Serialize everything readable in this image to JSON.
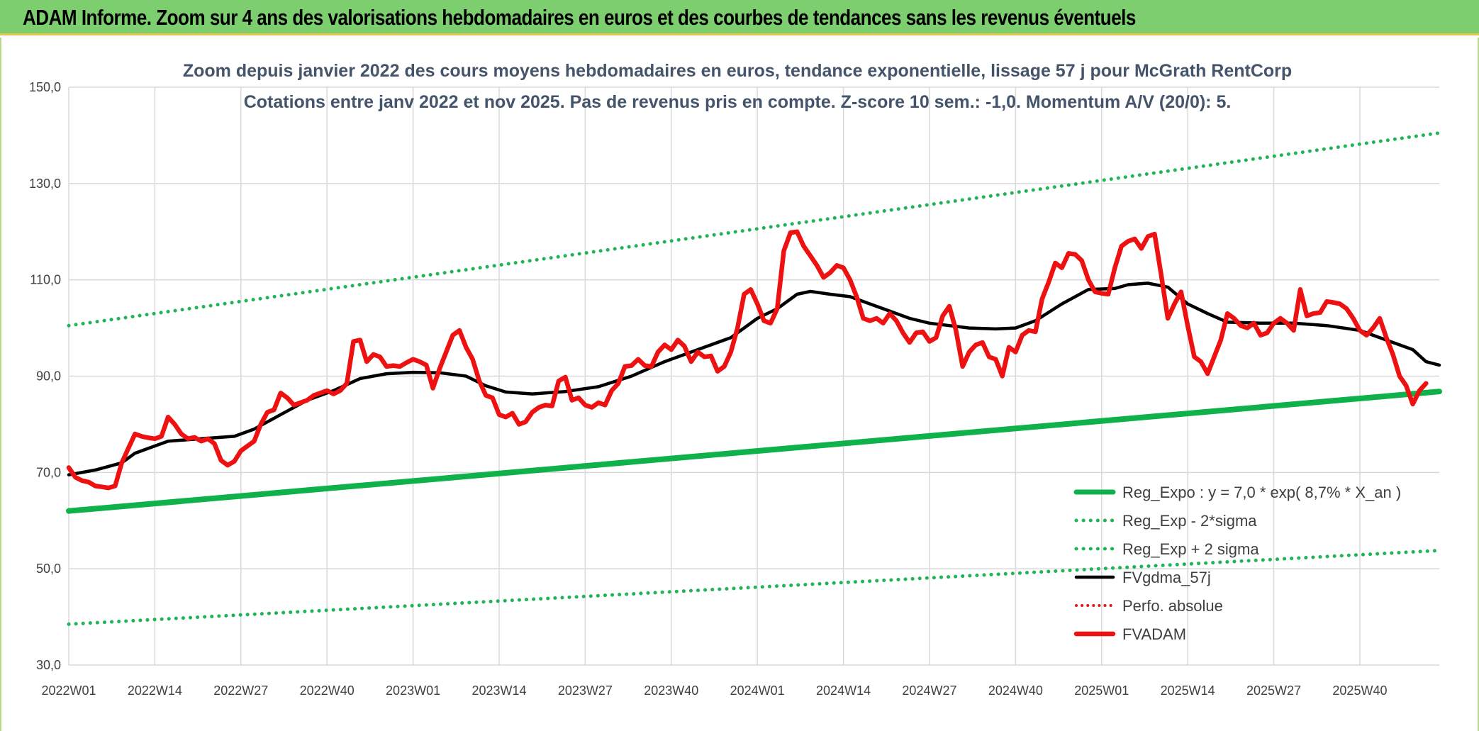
{
  "header": {
    "title": "ADAM Informe. Zoom sur 4 ans des valorisations hebdomadaires en euros et des courbes de tendances sans les revenus éventuels"
  },
  "colors": {
    "regression": "#0fb24a",
    "sigma": "#1fb455",
    "fvgdma": "#000000",
    "perfo": "#e31a1a",
    "fvadam": "#ee1111",
    "grid": "#d9d9d9",
    "title": "#44546a"
  },
  "chart_data": {
    "type": "line",
    "title": "Zoom depuis janvier 2022 des cours moyens hebdomadaires en euros, tendance exponentielle, lissage 57 j pour McGrath RentCorp",
    "subtitle": "Cotations entre janv 2022 et nov 2025. Pas de revenus pris en compte. Z-score 10 sem.: -1,0. Momentum A/V (20/0): 5.",
    "xlabel": "",
    "ylabel": "",
    "ylim": [
      30,
      150
    ],
    "yticks": [
      "30,0",
      "50,0",
      "70,0",
      "90,0",
      "110,0",
      "130,0",
      "150,0"
    ],
    "categories": [
      "2022W01",
      "2022W14",
      "2022W27",
      "2022W40",
      "2023W01",
      "2023W14",
      "2023W27",
      "2023W40",
      "2024W01",
      "2024W14",
      "2024W27",
      "2024W40",
      "2025W01",
      "2025W14",
      "2025W27",
      "2025W40"
    ],
    "x_week_index_of_categories": [
      0,
      13,
      26,
      39,
      52,
      65,
      78,
      91,
      104,
      117,
      130,
      143,
      156,
      169,
      182,
      195
    ],
    "grid": true,
    "legend_position": "bottom-right",
    "series": [
      {
        "name": "Reg_Expo : y = 7,0 * exp( 8,7% *  X_an )",
        "style": "solid-thick",
        "points": [
          [
            0,
            62.0
          ],
          [
            207,
            86.8
          ]
        ]
      },
      {
        "name": "Reg_Exp - 2*sigma",
        "style": "dotted",
        "points": [
          [
            0,
            38.5
          ],
          [
            207,
            53.8
          ]
        ]
      },
      {
        "name": "Reg_Exp + 2 sigma",
        "style": "dotted",
        "points": [
          [
            0,
            100.5
          ],
          [
            207,
            140.5
          ]
        ]
      },
      {
        "name": "FVgdma_57j",
        "style": "solid",
        "points": [
          [
            0,
            69.5
          ],
          [
            4,
            70.5
          ],
          [
            8,
            72
          ],
          [
            10,
            74
          ],
          [
            13,
            75.5
          ],
          [
            15,
            76.5
          ],
          [
            20,
            77
          ],
          [
            25,
            77.5
          ],
          [
            28,
            79
          ],
          [
            32,
            82
          ],
          [
            36,
            85
          ],
          [
            40,
            87
          ],
          [
            44,
            89.5
          ],
          [
            48,
            90.5
          ],
          [
            52,
            90.8
          ],
          [
            56,
            90.7
          ],
          [
            60,
            90
          ],
          [
            63,
            88
          ],
          [
            66,
            86.7
          ],
          [
            70,
            86.3
          ],
          [
            75,
            86.8
          ],
          [
            80,
            87.8
          ],
          [
            85,
            90
          ],
          [
            90,
            93
          ],
          [
            95,
            95.5
          ],
          [
            100,
            98
          ],
          [
            104,
            102
          ],
          [
            107,
            104
          ],
          [
            110,
            107
          ],
          [
            112,
            107.6
          ],
          [
            115,
            107
          ],
          [
            118,
            106.5
          ],
          [
            121,
            105
          ],
          [
            124,
            103.5
          ],
          [
            127,
            102
          ],
          [
            130,
            101
          ],
          [
            133,
            100.5
          ],
          [
            136,
            100
          ],
          [
            140,
            99.8
          ],
          [
            143,
            100
          ],
          [
            146,
            101.5
          ],
          [
            150,
            105
          ],
          [
            154,
            108
          ],
          [
            158,
            108.2
          ],
          [
            160,
            109
          ],
          [
            163,
            109.3
          ],
          [
            166,
            108.5
          ],
          [
            169,
            105
          ],
          [
            172,
            103
          ],
          [
            175,
            101.2
          ],
          [
            180,
            101
          ],
          [
            185,
            101
          ],
          [
            190,
            100.5
          ],
          [
            195,
            99.5
          ],
          [
            199,
            97.5
          ],
          [
            203,
            95.5
          ],
          [
            205,
            93
          ],
          [
            207,
            92.3
          ]
        ]
      },
      {
        "name": "Perfo. absolue",
        "style": "dotted",
        "points": []
      },
      {
        "name": "FVADAM",
        "style": "solid-thick",
        "points": [
          [
            0,
            71
          ],
          [
            1,
            69
          ],
          [
            2,
            68.3
          ],
          [
            3,
            68
          ],
          [
            4,
            67.2
          ],
          [
            5,
            67
          ],
          [
            6,
            66.8
          ],
          [
            7,
            67.2
          ],
          [
            8,
            72
          ],
          [
            9,
            75
          ],
          [
            10,
            78
          ],
          [
            11,
            77.5
          ],
          [
            12,
            77.2
          ],
          [
            13,
            77
          ],
          [
            14,
            77.5
          ],
          [
            15,
            81.5
          ],
          [
            16,
            80
          ],
          [
            17,
            78
          ],
          [
            18,
            77
          ],
          [
            19,
            77.3
          ],
          [
            20,
            76.5
          ],
          [
            21,
            77
          ],
          [
            22,
            76
          ],
          [
            23,
            72.5
          ],
          [
            24,
            71.5
          ],
          [
            25,
            72.3
          ],
          [
            26,
            74.5
          ],
          [
            27,
            75.5
          ],
          [
            28,
            76.5
          ],
          [
            29,
            80
          ],
          [
            30,
            82.5
          ],
          [
            31,
            83
          ],
          [
            32,
            86.5
          ],
          [
            33,
            85.5
          ],
          [
            34,
            84
          ],
          [
            35,
            84.5
          ],
          [
            36,
            85
          ],
          [
            37,
            86
          ],
          [
            38,
            86.5
          ],
          [
            39,
            87
          ],
          [
            40,
            86.3
          ],
          [
            41,
            87
          ],
          [
            42,
            88.5
          ],
          [
            43,
            97.2
          ],
          [
            44,
            97.5
          ],
          [
            45,
            93
          ],
          [
            46,
            94.5
          ],
          [
            47,
            94
          ],
          [
            48,
            92
          ],
          [
            49,
            92.2
          ],
          [
            50,
            92
          ],
          [
            51,
            92.8
          ],
          [
            52,
            93.5
          ],
          [
            53,
            93
          ],
          [
            54,
            92.3
          ],
          [
            55,
            87.5
          ],
          [
            56,
            91.5
          ],
          [
            57,
            95
          ],
          [
            58,
            98.5
          ],
          [
            59,
            99.5
          ],
          [
            60,
            96
          ],
          [
            61,
            93.5
          ],
          [
            62,
            89
          ],
          [
            63,
            86
          ],
          [
            64,
            85.5
          ],
          [
            65,
            82
          ],
          [
            66,
            81.5
          ],
          [
            67,
            82.3
          ],
          [
            68,
            80
          ],
          [
            69,
            80.5
          ],
          [
            70,
            82.5
          ],
          [
            71,
            83.5
          ],
          [
            72,
            84
          ],
          [
            73,
            83.8
          ],
          [
            74,
            89
          ],
          [
            75,
            89.8
          ],
          [
            76,
            85
          ],
          [
            77,
            85.5
          ],
          [
            78,
            84
          ],
          [
            79,
            83.5
          ],
          [
            80,
            84.5
          ],
          [
            81,
            84
          ],
          [
            82,
            87
          ],
          [
            83,
            88.5
          ],
          [
            84,
            92
          ],
          [
            85,
            92.2
          ],
          [
            86,
            93.5
          ],
          [
            87,
            92.2
          ],
          [
            88,
            92
          ],
          [
            89,
            95
          ],
          [
            90,
            96.5
          ],
          [
            91,
            95.5
          ],
          [
            92,
            97.5
          ],
          [
            93,
            96.2
          ],
          [
            94,
            93
          ],
          [
            95,
            95
          ],
          [
            96,
            94
          ],
          [
            97,
            94.2
          ],
          [
            98,
            91
          ],
          [
            99,
            92
          ],
          [
            100,
            95
          ],
          [
            101,
            100
          ],
          [
            102,
            107
          ],
          [
            103,
            108
          ],
          [
            104,
            105
          ],
          [
            105,
            101.5
          ],
          [
            106,
            101
          ],
          [
            107,
            104
          ],
          [
            108,
            116
          ],
          [
            109,
            119.8
          ],
          [
            110,
            120
          ],
          [
            111,
            117
          ],
          [
            112,
            115
          ],
          [
            113,
            113
          ],
          [
            114,
            110.5
          ],
          [
            115,
            111.5
          ],
          [
            116,
            113
          ],
          [
            117,
            112.5
          ],
          [
            118,
            110
          ],
          [
            119,
            106.5
          ],
          [
            120,
            102
          ],
          [
            121,
            101.5
          ],
          [
            122,
            102
          ],
          [
            123,
            101
          ],
          [
            124,
            103
          ],
          [
            125,
            101.5
          ],
          [
            126,
            99
          ],
          [
            127,
            97
          ],
          [
            128,
            99
          ],
          [
            129,
            99.2
          ],
          [
            130,
            97.2
          ],
          [
            131,
            98
          ],
          [
            132,
            102.5
          ],
          [
            133,
            104.5
          ],
          [
            134,
            99.5
          ],
          [
            135,
            92
          ],
          [
            136,
            95
          ],
          [
            137,
            96.5
          ],
          [
            138,
            97
          ],
          [
            139,
            94
          ],
          [
            140,
            93.5
          ],
          [
            141,
            90
          ],
          [
            142,
            96
          ],
          [
            143,
            95
          ],
          [
            144,
            98.5
          ],
          [
            145,
            99.5
          ],
          [
            146,
            99.2
          ],
          [
            147,
            106
          ],
          [
            148,
            109.5
          ],
          [
            149,
            113.5
          ],
          [
            150,
            112.5
          ],
          [
            151,
            115.5
          ],
          [
            152,
            115.3
          ],
          [
            153,
            114
          ],
          [
            154,
            110
          ],
          [
            155,
            107.5
          ],
          [
            156,
            107.2
          ],
          [
            157,
            107
          ],
          [
            158,
            112.5
          ],
          [
            159,
            117
          ],
          [
            160,
            118
          ],
          [
            161,
            118.5
          ],
          [
            162,
            116.5
          ],
          [
            163,
            119
          ],
          [
            164,
            119.5
          ],
          [
            165,
            111
          ],
          [
            166,
            102
          ],
          [
            167,
            105
          ],
          [
            168,
            107.5
          ],
          [
            169,
            100.5
          ],
          [
            170,
            94
          ],
          [
            171,
            93
          ],
          [
            172,
            90.5
          ],
          [
            173,
            94
          ],
          [
            174,
            97.5
          ],
          [
            175,
            103
          ],
          [
            176,
            102
          ],
          [
            177,
            100.5
          ],
          [
            178,
            100
          ],
          [
            179,
            101
          ],
          [
            180,
            98.5
          ],
          [
            181,
            99
          ],
          [
            182,
            101
          ],
          [
            183,
            102
          ],
          [
            184,
            101
          ],
          [
            185,
            99.5
          ],
          [
            186,
            108
          ],
          [
            187,
            102.5
          ],
          [
            188,
            103
          ],
          [
            189,
            103.2
          ],
          [
            190,
            105.5
          ],
          [
            191,
            105.3
          ],
          [
            192,
            105
          ],
          [
            193,
            104
          ],
          [
            194,
            102
          ],
          [
            195,
            99.5
          ],
          [
            196,
            98.5
          ],
          [
            197,
            100
          ],
          [
            198,
            102
          ],
          [
            199,
            98
          ],
          [
            200,
            94.5
          ],
          [
            201,
            90
          ],
          [
            202,
            88
          ],
          [
            203,
            84.2
          ],
          [
            204,
            87
          ],
          [
            205,
            88.5
          ]
        ]
      }
    ]
  }
}
